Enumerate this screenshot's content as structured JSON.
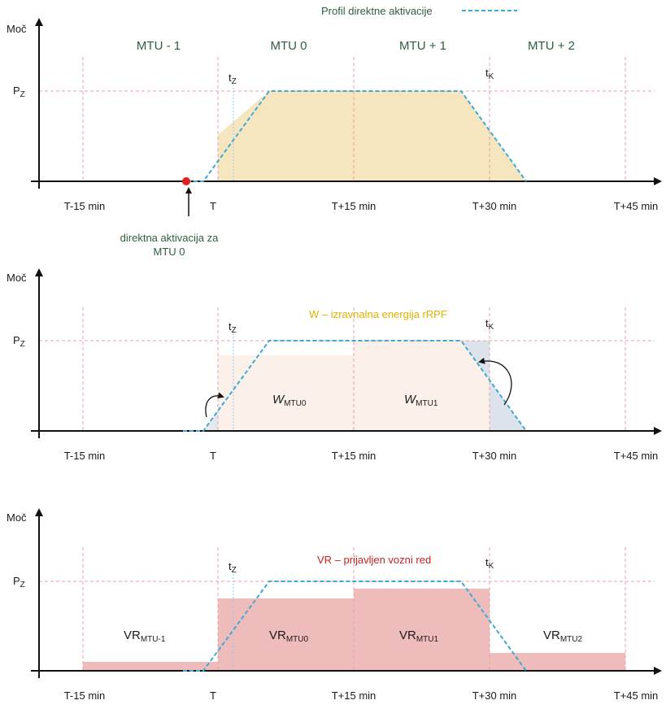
{
  "legend": {
    "label": "Profil direktne aktivacije"
  },
  "colors": {
    "profile": "#3fa9d6",
    "grid": "#e8a0a8",
    "marker": "#e02020",
    "area_top": "#f6e6bf",
    "w_fill": "#fbf1ea",
    "w_diff": "#dde3ea",
    "vr_fill": "#efbcbc",
    "vr_label": "#cc1f1f",
    "w_label": "#e3b100"
  },
  "axes": {
    "y_label": "Moč",
    "pz_label": "P",
    "pz_sub": "Z",
    "tz_label": "t",
    "tz_sub": "Z",
    "tk_label": "t",
    "tk_sub": "K",
    "x_ticks": [
      "T-15 min",
      "T",
      "T+15 min",
      "T+30 min",
      "T+45 min"
    ]
  },
  "panel1": {
    "mtu_labels": [
      "MTU - 1",
      "MTU 0",
      "MTU + 1",
      "MTU + 2"
    ],
    "activation_line1": "direktna aktivacija za",
    "activation_line2": "MTU 0"
  },
  "panel2": {
    "title": "W – izravnalna energija rRPF",
    "w0_main": "W",
    "w0_sub": "MTU0",
    "w1_main": "W",
    "w1_sub": "MTU1"
  },
  "panel3": {
    "title": "VR – prijavljen vozni red",
    "labels": [
      {
        "main": "VR",
        "sub": "MTU-1"
      },
      {
        "main": "VR",
        "sub": "MTU0"
      },
      {
        "main": "VR",
        "sub": "MTU1"
      },
      {
        "main": "VR",
        "sub": "MTU2"
      }
    ]
  }
}
